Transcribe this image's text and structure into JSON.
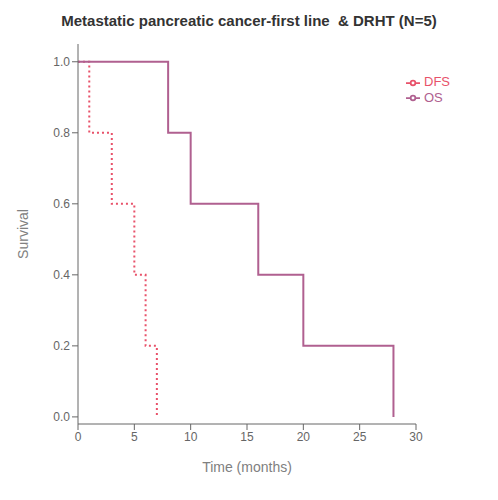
{
  "chart_data": {
    "type": "line",
    "title": "Metastatic pancreatic cancer-first line  & DRHT (N=5)",
    "xlabel": "Time (months)",
    "ylabel": "Survival",
    "xlim": [
      0,
      30
    ],
    "ylim": [
      -0.02,
      1.05
    ],
    "xticks": [
      0,
      5,
      10,
      15,
      20,
      25,
      30
    ],
    "yticks": [
      {
        "value": 0,
        "label": "0.0"
      },
      0.2,
      0.4,
      0.6,
      0.8,
      {
        "value": 1,
        "label": "1.0"
      }
    ],
    "grid": false,
    "legend": "upper right",
    "series": [
      {
        "name": "DFS",
        "color": "#e8526a",
        "line_style": "dotted",
        "x": [
          0,
          1,
          3,
          5,
          6,
          7
        ],
        "values": [
          1.0,
          0.8,
          0.6,
          0.4,
          0.2,
          0.0
        ]
      },
      {
        "name": "OS",
        "color": "#b06090",
        "line_style": "solid",
        "x": [
          0,
          8,
          10,
          16,
          20,
          27,
          28
        ],
        "values": [
          1.0,
          0.8,
          0.6,
          0.4,
          0.2,
          0.2,
          0.0
        ]
      }
    ]
  }
}
